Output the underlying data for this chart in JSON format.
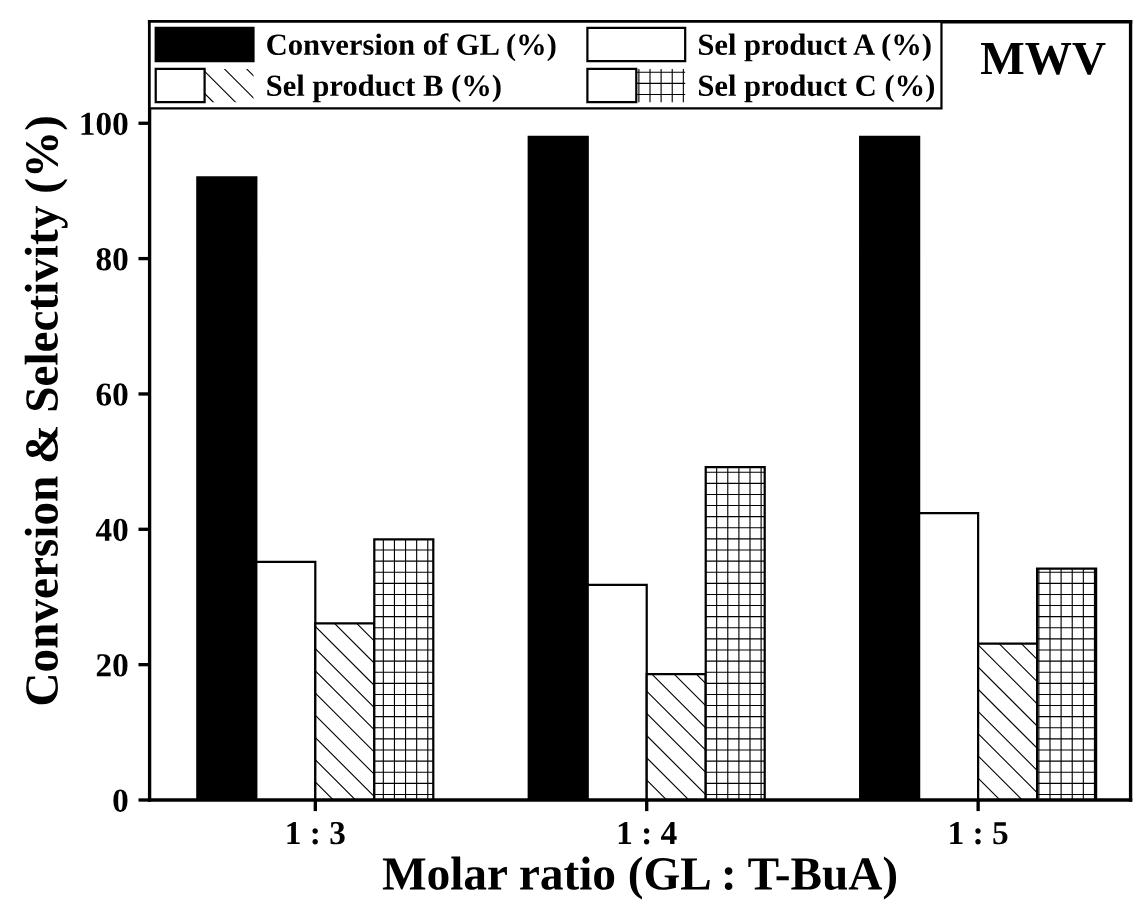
{
  "chart_data": {
    "type": "bar",
    "xlabel": "Molar ratio (GL : T-BuA)",
    "ylabel": "Conversion & Selectivity (%)",
    "categories": [
      "1 : 3",
      "1 : 4",
      "1 : 5"
    ],
    "series": [
      {
        "name": "Conversion of GL (%)",
        "color": "#000000",
        "values": [
          92.0,
          98.0,
          98.0
        ]
      },
      {
        "name": "Sel product A (%)",
        "color": "#ffffff",
        "values": [
          35.2,
          31.8,
          42.4
        ]
      },
      {
        "name": "Sel product B (%)",
        "color": "#ffffff",
        "values": [
          26.1,
          18.6,
          23.1
        ]
      },
      {
        "name": "Sel product C (%)",
        "color": "#ffffff",
        "values": [
          38.5,
          49.2,
          34.2
        ]
      }
    ],
    "ylim": [
      0,
      115
    ],
    "yticks": [
      0,
      20,
      40,
      60,
      80,
      100
    ],
    "annotations": [
      "MWV"
    ],
    "legend": "top left",
    "grid": false
  }
}
